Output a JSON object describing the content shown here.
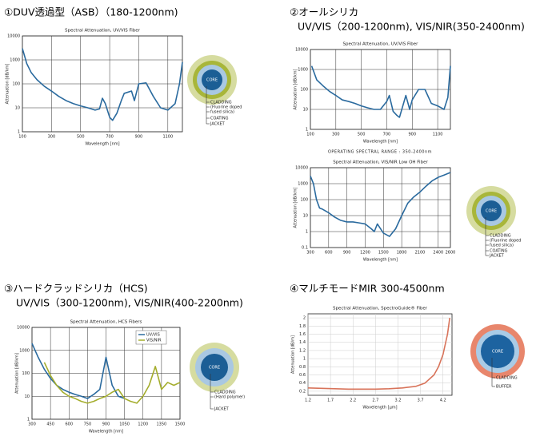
{
  "sections": [
    {
      "heading": [
        "①DUV透過型（ASB）（180-1200nm)"
      ],
      "diagram": [
        "CORE",
        "CLADDING",
        "(Fluorine doped",
        "fused silica)",
        "COATING",
        "JACKET"
      ]
    },
    {
      "heading": [
        "②オールシリカ",
        "UV/VIS（200-1200nm), VIS/NIR(350-2400nm)"
      ],
      "operating_range": "OPERATING SPECTRAL RANGE : 350-2400nm",
      "diagram": [
        "CORE",
        "CLADDING",
        "(Fluorine doped",
        "fused silica)",
        "COATING",
        "JACKET"
      ]
    },
    {
      "heading": [
        "③ハードクラッドシリカ（HCS)",
        "UV/VIS（300-1200nm), VIS/NIR(400-2200nm)"
      ],
      "diagram": [
        "CORE",
        "CLADDING",
        "(Hard polymer)",
        "JACKET"
      ]
    },
    {
      "heading": [
        "④マルチモードMIR 300-4500nm"
      ],
      "diagram": [
        "CORE",
        "CLADDING",
        "BUFFER"
      ]
    }
  ],
  "chart_data": [
    {
      "type": "line",
      "title": "Spectral Attenuation, UV/VIS Fiber",
      "x_label": "Wavelength [nm]",
      "y_label": "Attenuation [dB/km]",
      "log_y": true,
      "grid": true,
      "x": [
        100,
        130,
        160,
        200,
        250,
        300,
        350,
        400,
        450,
        500,
        550,
        600,
        630,
        650,
        670,
        700,
        720,
        750,
        780,
        800,
        850,
        870,
        900,
        950,
        1000,
        1050,
        1100,
        1150,
        1180,
        1200
      ],
      "series": [
        {
          "color": "#2a6a9e",
          "values": [
            3000,
            700,
            300,
            150,
            80,
            50,
            30,
            20,
            15,
            12,
            10,
            8,
            9,
            25,
            15,
            4,
            3,
            6,
            20,
            40,
            50,
            20,
            100,
            110,
            30,
            10,
            8,
            15,
            100,
            800
          ]
        }
      ],
      "xlim": [
        100,
        1200
      ],
      "ylim": [
        1,
        10000
      ],
      "xticks": [
        100,
        300,
        500,
        700,
        900,
        1100
      ],
      "yticks": [
        1,
        10,
        100,
        1000,
        10000
      ]
    },
    {
      "type": "line",
      "title": "Spectral Attenuation, UV/VIS Fiber",
      "x_label": "Wavelength [nm]",
      "y_label": "Attenuation [dB/km]",
      "log_y": true,
      "grid": true,
      "x": [
        110,
        150,
        200,
        250,
        300,
        350,
        400,
        450,
        500,
        550,
        600,
        650,
        700,
        720,
        750,
        780,
        800,
        850,
        880,
        900,
        950,
        1000,
        1050,
        1100,
        1150,
        1180,
        1200
      ],
      "series": [
        {
          "color": "#2a6a9e",
          "values": [
            1500,
            300,
            150,
            80,
            50,
            30,
            25,
            20,
            15,
            12,
            10,
            10,
            25,
            50,
            8,
            5,
            4,
            50,
            10,
            30,
            100,
            100,
            20,
            15,
            10,
            40,
            1500
          ]
        }
      ],
      "xlim": [
        100,
        1200
      ],
      "ylim": [
        1,
        10000
      ],
      "xticks": [
        100,
        300,
        500,
        700,
        900,
        1100
      ],
      "yticks": [
        1,
        10,
        100,
        1000,
        10000
      ]
    },
    {
      "type": "line",
      "title": "Spectral Attenuation, VIS/NIR Low OH Fiber",
      "x_label": "Wavelength [nm]",
      "y_label": "Attenuation [dB/km]",
      "log_y": true,
      "grid": true,
      "x": [
        300,
        350,
        400,
        450,
        500,
        600,
        700,
        800,
        900,
        1000,
        1100,
        1200,
        1300,
        1350,
        1400,
        1500,
        1600,
        1700,
        1800,
        1900,
        2000,
        2100,
        2200,
        2300,
        2400,
        2500,
        2600
      ],
      "series": [
        {
          "color": "#2a6a9e",
          "values": [
            3000,
            1000,
            100,
            30,
            25,
            15,
            8,
            5,
            4,
            4,
            3.5,
            3,
            1.5,
            1,
            3,
            0.8,
            0.5,
            1.5,
            10,
            60,
            150,
            300,
            700,
            1500,
            2500,
            3500,
            5000
          ]
        }
      ],
      "xlim": [
        300,
        2600
      ],
      "ylim": [
        0.1,
        10000
      ],
      "xticks": [
        300,
        600,
        900,
        1200,
        1500,
        1800,
        2100,
        2400,
        2600
      ],
      "yticks": [
        0.1,
        1,
        10,
        100,
        1000,
        10000
      ]
    },
    {
      "type": "line",
      "title": "Spectral Attenuation, HCS Fibers",
      "x_label": "Wavelength [nm]",
      "y_label": "Attenuation [dB/km]",
      "log_y": true,
      "grid": true,
      "legend": "upper right",
      "x": [
        300,
        350,
        400,
        450,
        500,
        550,
        600,
        650,
        700,
        750,
        800,
        850,
        900,
        950,
        1000,
        1050,
        1100,
        1150,
        1200,
        1250,
        1300,
        1350,
        1400,
        1450,
        1500
      ],
      "series": [
        {
          "name": "UV/VIS",
          "color": "#2a6a9e",
          "values": [
            2000,
            500,
            150,
            60,
            30,
            20,
            15,
            12,
            10,
            8,
            12,
            20,
            500,
            30,
            10,
            8,
            null,
            null,
            null,
            null,
            null,
            null,
            null,
            null,
            null
          ]
        },
        {
          "name": "VIS/NIR",
          "color": "#a4ad2c",
          "values": [
            null,
            null,
            300,
            80,
            30,
            15,
            10,
            8,
            6,
            5,
            6,
            8,
            10,
            15,
            20,
            8,
            6,
            5,
            10,
            30,
            200,
            20,
            40,
            30,
            40
          ]
        }
      ],
      "xlim": [
        300,
        1500
      ],
      "ylim": [
        1,
        10000
      ],
      "xticks": [
        300,
        450,
        600,
        750,
        900,
        1050,
        1200,
        1350,
        1500
      ],
      "yticks": [
        1,
        10,
        100,
        1000,
        10000
      ]
    },
    {
      "type": "line",
      "title": "Spectral Attenuation, SpectroGuide® Fiber",
      "x_label": "Wavelength [μm]",
      "y_label": "Attenuation [dB/m]",
      "log_y": false,
      "grid": true,
      "x": [
        1.2,
        1.5,
        1.8,
        2.1,
        2.4,
        2.7,
        3.0,
        3.3,
        3.6,
        3.8,
        4.0,
        4.1,
        4.2,
        4.3,
        4.35
      ],
      "series": [
        {
          "color": "#d8735a",
          "values": [
            0.28,
            0.27,
            0.26,
            0.25,
            0.25,
            0.25,
            0.26,
            0.28,
            0.32,
            0.4,
            0.6,
            0.8,
            1.1,
            1.6,
            2.0
          ]
        }
      ],
      "xlim": [
        1.2,
        4.4
      ],
      "ylim": [
        0.1,
        2.1
      ],
      "xticks": [
        1.2,
        1.7,
        2.2,
        2.7,
        3.2,
        3.7,
        4.2
      ],
      "yticks": [
        0.2,
        0.4,
        0.6,
        0.8,
        1,
        1.2,
        1.4,
        1.6,
        1.8,
        2
      ]
    }
  ]
}
